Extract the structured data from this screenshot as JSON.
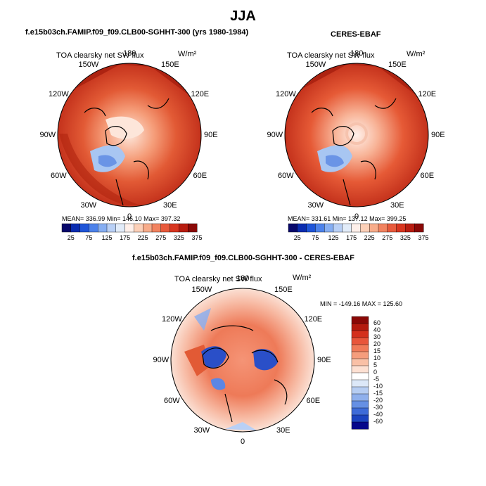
{
  "figure": {
    "title": "JJA"
  },
  "panels": [
    {
      "title": "f.e15b03ch.FAMIP.f09_f09.CLB00-SGHHT-300 (yrs 1980-1984)",
      "variable": "TOA clearsky net SW flux",
      "units": "W/m²",
      "stats": "MEAN= 336.99    Min= 146.10    Max= 397.32"
    },
    {
      "title": "CERES-EBAF",
      "variable": "TOA clearsky net SW flux",
      "units": "W/m²",
      "stats": "MEAN= 331.61    Min= 137.12    Max= 399.25"
    },
    {
      "title": "f.e15b03ch.FAMIP.f09_f09.CLB00-SGHHT-300 - CERES-EBAF",
      "variable": "TOA clearsky net SW flux",
      "units": "W/m²",
      "stats": "MIN = -149.16  MAX = 125.60"
    }
  ],
  "longitude_labels": [
    "180",
    "150E",
    "120E",
    "90E",
    "60E",
    "30E",
    "0",
    "30W",
    "60W",
    "90W",
    "120W",
    "150W"
  ],
  "colors": {
    "background": "#ffffff",
    "land_outline": "#000000"
  },
  "chart_data": [
    {
      "type": "heatmap",
      "projection": "north polar stereographic",
      "title": "f.e15b03ch.FAMIP.f09_f09.CLB00-SGHHT-300 (yrs 1980-1984)",
      "variable": "TOA clearsky net SW flux",
      "units": "W/m2",
      "mean": 336.99,
      "min": 146.1,
      "max": 397.32,
      "colorbar": {
        "ticks": [
          "25",
          "75",
          "125",
          "175",
          "225",
          "275",
          "325",
          "375"
        ],
        "colors": [
          "#08086b",
          "#0a2cb0",
          "#1f55d8",
          "#4d82ea",
          "#86aef2",
          "#b9d0f6",
          "#e2ecf9",
          "#fff0ea",
          "#fcd0b8",
          "#f8ac8a",
          "#f28360",
          "#e85a3c",
          "#d8351f",
          "#b81c10",
          "#8a0806"
        ]
      }
    },
    {
      "type": "heatmap",
      "projection": "north polar stereographic",
      "title": "CERES-EBAF",
      "variable": "TOA clearsky net SW flux",
      "units": "W/m2",
      "mean": 331.61,
      "min": 137.12,
      "max": 399.25,
      "colorbar": {
        "ticks": [
          "25",
          "75",
          "125",
          "175",
          "225",
          "275",
          "325",
          "375"
        ],
        "colors": [
          "#08086b",
          "#0a2cb0",
          "#1f55d8",
          "#4d82ea",
          "#86aef2",
          "#b9d0f6",
          "#e2ecf9",
          "#fff0ea",
          "#fcd0b8",
          "#f8ac8a",
          "#f28360",
          "#e85a3c",
          "#d8351f",
          "#b81c10",
          "#8a0806"
        ]
      }
    },
    {
      "type": "heatmap",
      "projection": "north polar stereographic",
      "title": "f.e15b03ch.FAMIP.f09_f09.CLB00-SGHHT-300 - CERES-EBAF",
      "variable": "TOA clearsky net SW flux",
      "units": "W/m2",
      "min": -149.16,
      "max": 125.6,
      "colorbar": {
        "ticks": [
          "60",
          "40",
          "30",
          "20",
          "15",
          "10",
          "5",
          "0",
          "-5",
          "-10",
          "-15",
          "-20",
          "-30",
          "-40",
          "-60"
        ],
        "colors": [
          "#8a0806",
          "#b41a0e",
          "#d4301c",
          "#e8553a",
          "#f07a58",
          "#f59d7c",
          "#f9c0a6",
          "#fde0d2",
          "#ffffff",
          "#dce8f8",
          "#b6cdf2",
          "#8fb0ec",
          "#6690e4",
          "#3e6bd8",
          "#1c44c0",
          "#06088a"
        ]
      }
    }
  ]
}
